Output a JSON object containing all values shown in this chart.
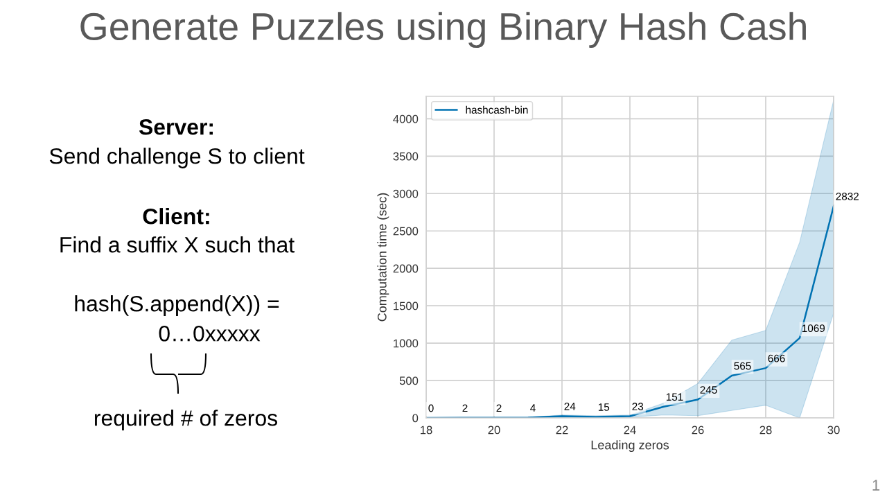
{
  "chart_data": {
    "type": "line",
    "title": "Generate Puzzles using Binary Hash Cash",
    "xlabel": "Leading zeros",
    "ylabel": "Computation time (sec)",
    "x": [
      18,
      19,
      20,
      21,
      22,
      23,
      24,
      25,
      26,
      27,
      28,
      29,
      30
    ],
    "series": [
      {
        "name": "hashcash-bin",
        "color": "#0072b2",
        "values": [
          0,
          2,
          2,
          4,
          24,
          15,
          23,
          151,
          245,
          565,
          666,
          1069,
          2832
        ],
        "lower": [
          0,
          0,
          0,
          0,
          0,
          0,
          10,
          40,
          30,
          100,
          170,
          0,
          1400
        ],
        "upper": [
          0,
          5,
          5,
          8,
          40,
          30,
          40,
          200,
          460,
          1040,
          1170,
          2350,
          4250
        ]
      }
    ],
    "xlim": [
      18,
      30
    ],
    "ylim": [
      0,
      4300
    ],
    "xticks": [
      18,
      20,
      22,
      24,
      26,
      28,
      30
    ],
    "yticks": [
      0,
      500,
      1000,
      1500,
      2000,
      2500,
      3000,
      3500,
      4000
    ],
    "grid": true,
    "legend": "top left",
    "data_labels": true,
    "line_style": "solid",
    "marker": "none",
    "annotations": [
      "Server:",
      "Send challenge S to client",
      "Client:",
      "Find a suffix X such that",
      "hash(S.append(X)) =",
      "0…0xxxxx",
      "required # of zeros",
      "1"
    ]
  }
}
